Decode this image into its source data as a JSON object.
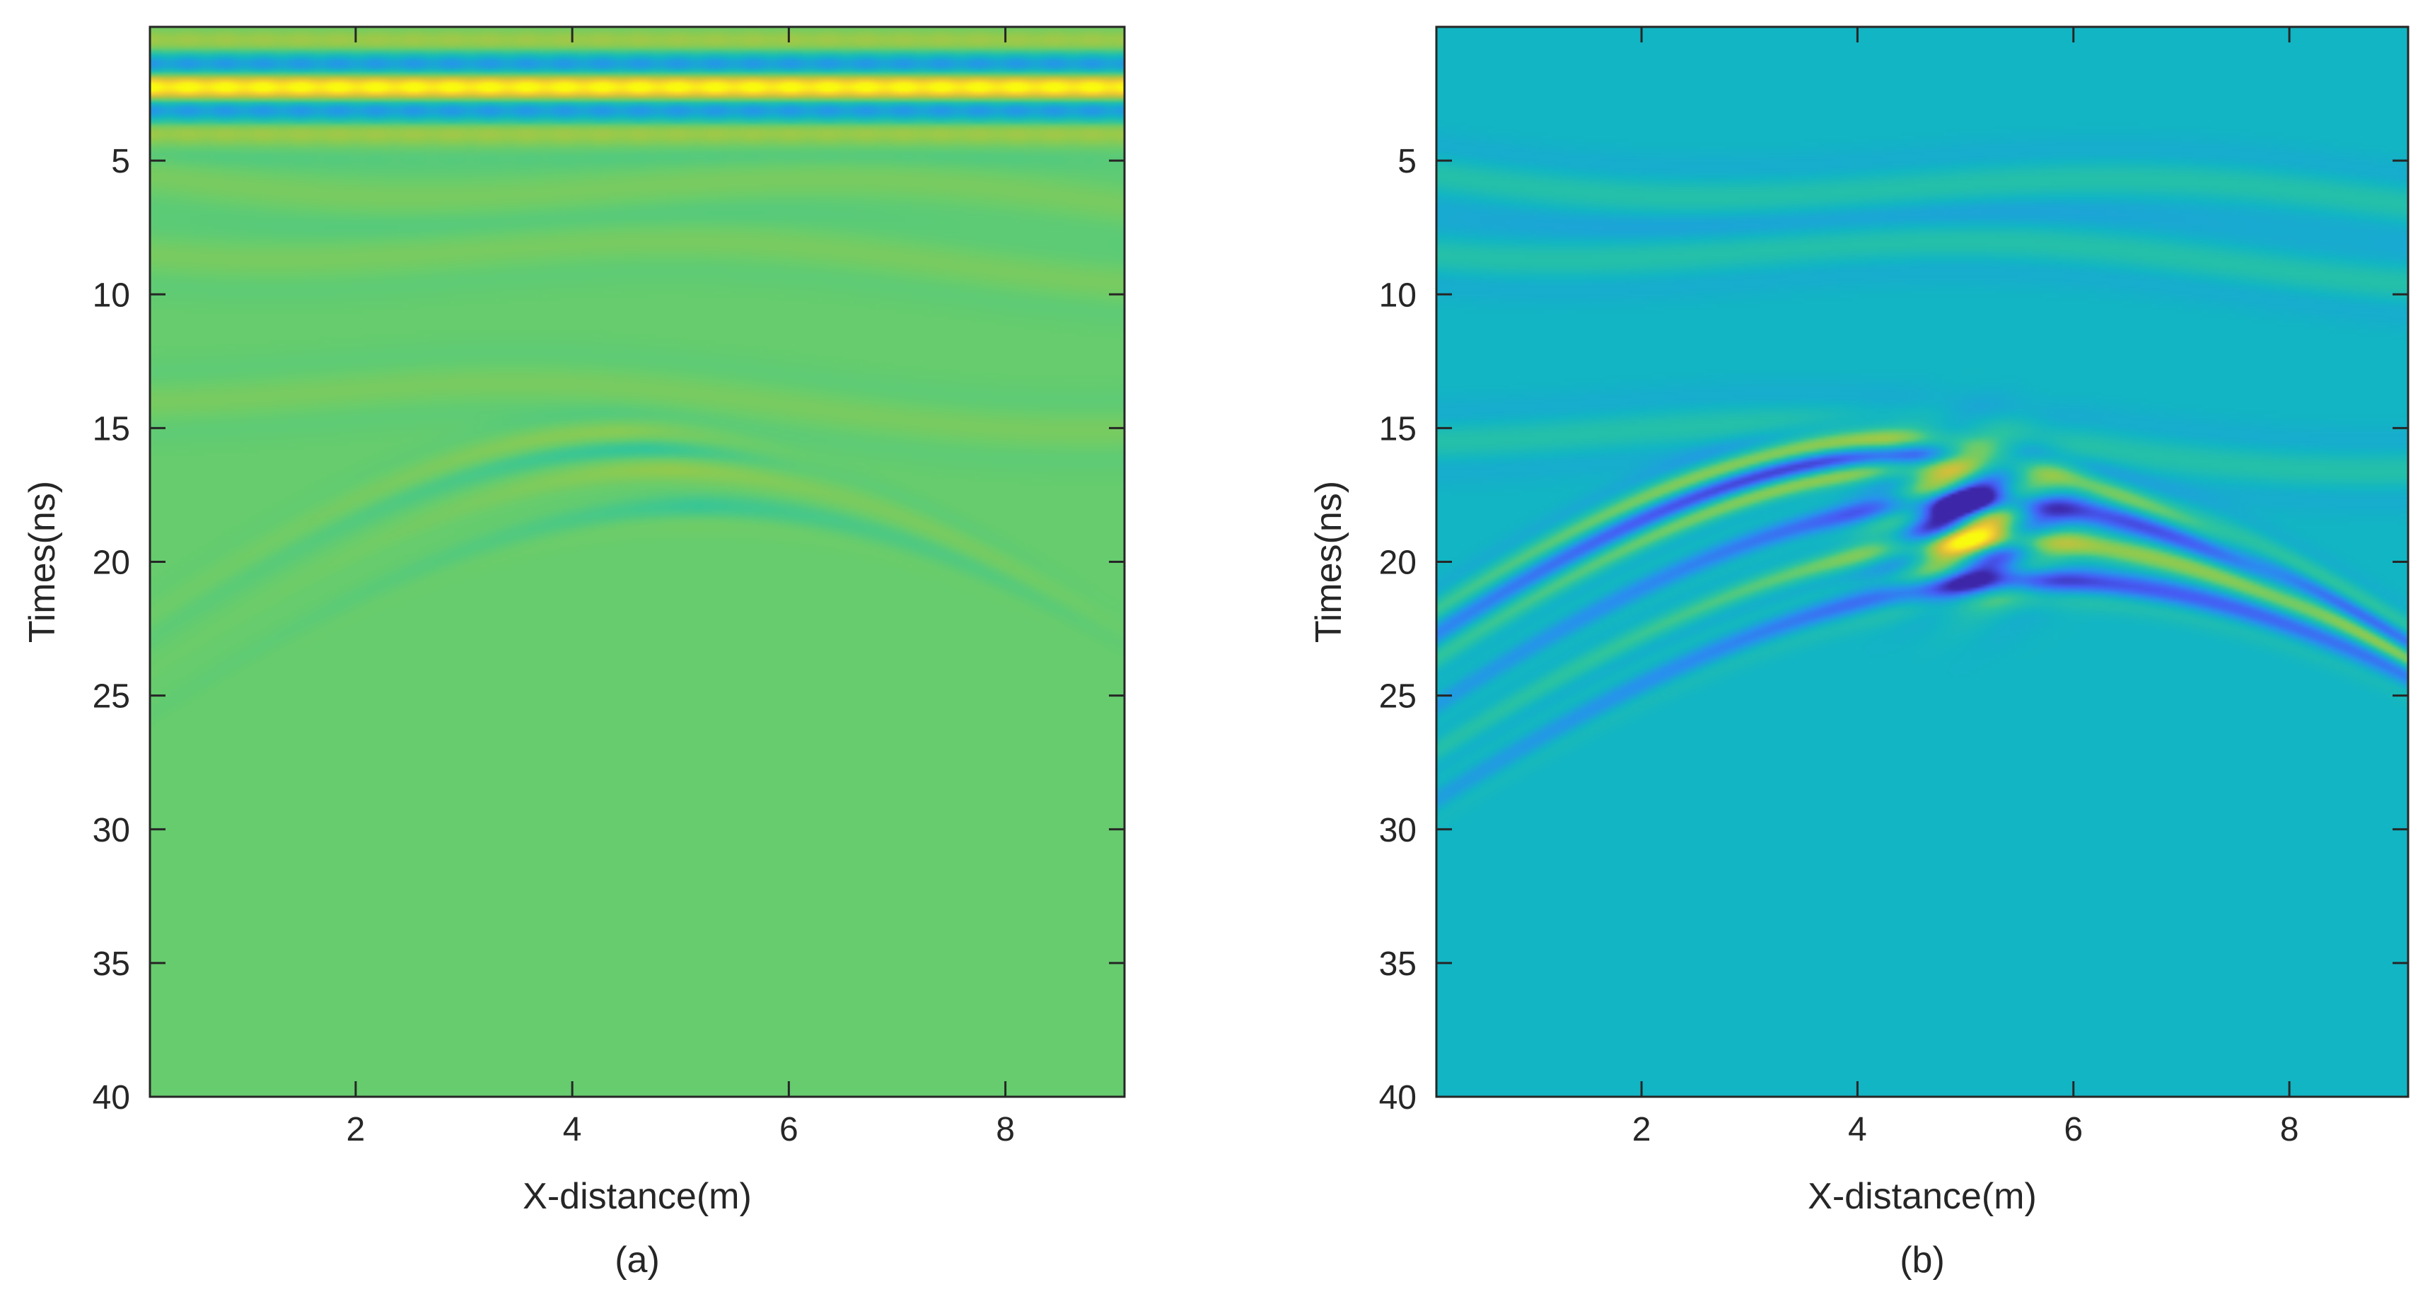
{
  "chart_data": [
    {
      "type": "heatmap",
      "panel_label": "(a)",
      "xlabel": "X-distance(m)",
      "ylabel": "Times(ns)",
      "xlim": [
        0.1,
        9.1
      ],
      "ylim": [
        0,
        40
      ],
      "y_reversed": true,
      "xticks": [
        2,
        4,
        6,
        8
      ],
      "yticks": [
        5,
        10,
        15,
        20,
        25,
        30,
        35,
        40
      ],
      "colormap": "parula",
      "background_level": 0.58,
      "direct_wave": {
        "t_start": 0.4,
        "t_end": 4.0,
        "present": true
      },
      "hyperbola_apex": {
        "x": 4.8,
        "t": 14.5
      },
      "hyperbola_amplitude": "weak",
      "layers": [
        {
          "t": 6.0,
          "note": "faint layer"
        },
        {
          "t": 8.5,
          "note": "faint layer"
        },
        {
          "t": 14.0,
          "note": "faint layer"
        }
      ],
      "grid": false,
      "colors": {
        "low": "#3e26a8",
        "mid": "#26bcb0",
        "background": "#66cc6e",
        "high": "#fadd26"
      }
    },
    {
      "type": "heatmap",
      "panel_label": "(b)",
      "xlabel": "X-distance(m)",
      "ylabel": "Times(ns)",
      "xlim": [
        0.1,
        9.1
      ],
      "ylim": [
        0,
        40
      ],
      "y_reversed": true,
      "xticks": [
        2,
        4,
        6,
        8
      ],
      "yticks": [
        5,
        10,
        15,
        20,
        25,
        30,
        35,
        40
      ],
      "colormap": "parula",
      "background_level": 0.38,
      "direct_wave": {
        "present": false
      },
      "hyperbola_apex": {
        "x": 4.8,
        "t": 14.5
      },
      "hyperbola_amplitude": "strong",
      "layers": [
        {
          "t": 6.0,
          "note": "layer"
        },
        {
          "t": 8.5,
          "note": "layer"
        },
        {
          "t": 15.5,
          "note": "layer"
        }
      ],
      "grid": false,
      "colors": {
        "low": "#3e26a8",
        "background": "#12b5c4",
        "high": "#fadd26"
      }
    }
  ]
}
